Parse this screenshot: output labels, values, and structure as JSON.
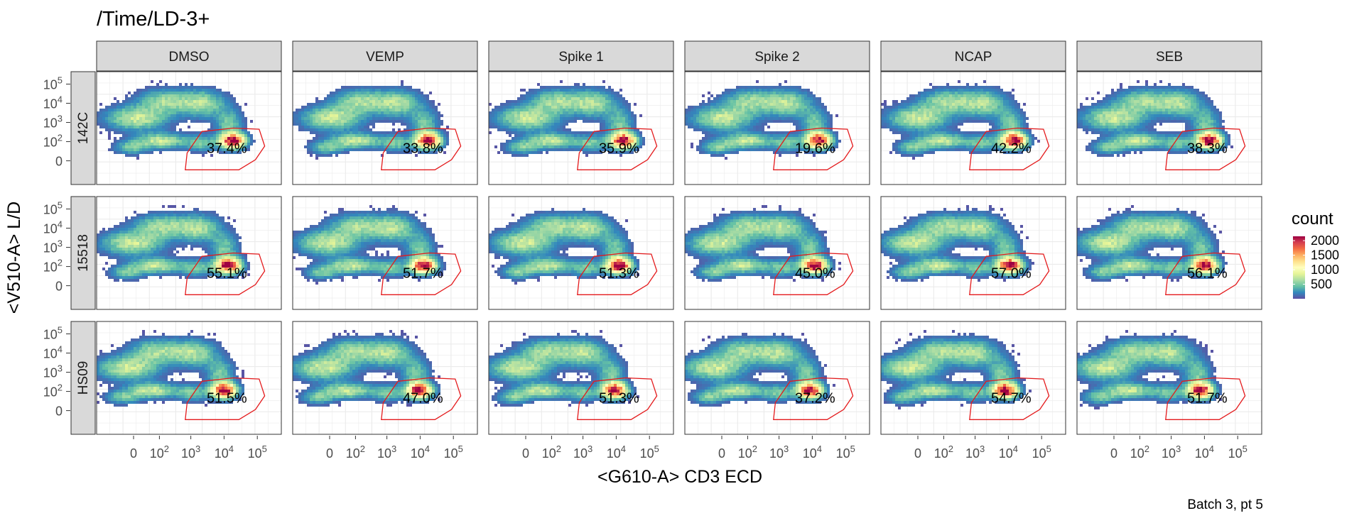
{
  "title": "/Time/LD-3+",
  "caption": "Batch 3, pt 5",
  "chart_data": {
    "type": "heatmap",
    "title": "/Time/LD-3+",
    "xlabel": "<G610-A> CD3 ECD",
    "ylabel": "<V510-A> L/D",
    "x_ticks": [
      "0",
      "10^2",
      "10^3",
      "10^4",
      "10^5"
    ],
    "y_ticks": [
      "10^5",
      "10^4",
      "10^3",
      "10^2",
      "0"
    ],
    "columns": [
      "DMSO",
      "VEMP",
      "Spike 1",
      "Spike 2",
      "NCAP",
      "SEB"
    ],
    "rows": [
      "142C",
      "15518",
      "HS09"
    ],
    "gate_percent": [
      [
        "37.4%",
        "33.8%",
        "35.9%",
        "19.6%",
        "42.2%",
        "38.3%"
      ],
      [
        "55.1%",
        "51.7%",
        "51.3%",
        "45.0%",
        "57.0%",
        "56.1%"
      ],
      [
        "51.5%",
        "47.0%",
        "51.3%",
        "37.2%",
        "54.7%",
        "51.7%"
      ]
    ],
    "legend": {
      "title": "count",
      "ticks": [
        500,
        1000,
        1500,
        2000
      ],
      "range": [
        0,
        2150
      ],
      "colors": [
        "#5E4FA2",
        "#3288BD",
        "#66C2A5",
        "#ABDDA4",
        "#E6F598",
        "#FFFFBF",
        "#FEE08B",
        "#FDAE61",
        "#F46D43",
        "#D53E4F",
        "#9E0142"
      ]
    },
    "gate_color": "#E41A1C",
    "strip_color": "#D9D9D9"
  }
}
